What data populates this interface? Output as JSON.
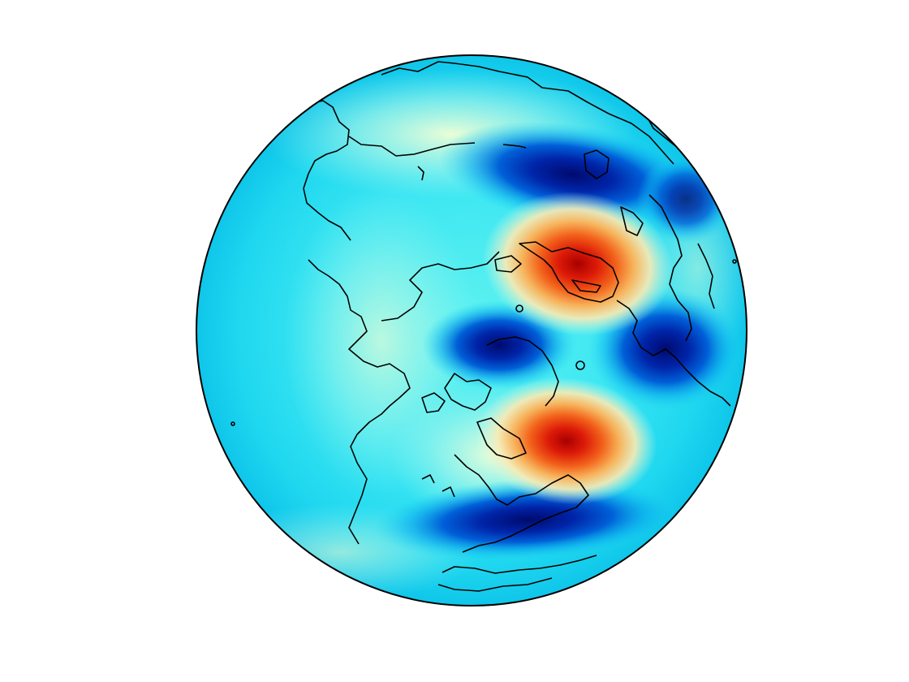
{
  "map": {
    "projection": "orthographic",
    "view": "northern-hemisphere",
    "colormap": "jet",
    "field": {
      "units": "",
      "features": [
        {
          "kind": "high",
          "color": "#c8150c"
        },
        {
          "kind": "high",
          "color": "#c8150c"
        },
        {
          "kind": "low",
          "color": "#000f7a"
        },
        {
          "kind": "low",
          "color": "#000f7a"
        },
        {
          "kind": "low",
          "color": "#000f7a"
        },
        {
          "kind": "low",
          "color": "#000f7a"
        }
      ]
    },
    "coastlines": "black",
    "background": "#2ee3f0"
  }
}
